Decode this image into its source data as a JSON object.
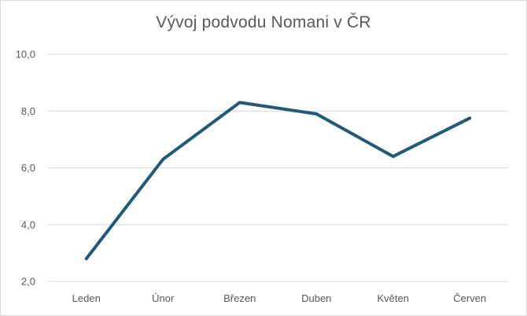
{
  "chart_data": {
    "type": "line",
    "title": "Vývoj podvodu Nomani v ČR",
    "xlabel": "",
    "ylabel": "",
    "categories": [
      "Leden",
      "Únor",
      "Březen",
      "Duben",
      "Květen",
      "Červen"
    ],
    "series": [
      {
        "values": [
          2.8,
          6.3,
          8.3,
          7.9,
          6.4,
          7.75
        ],
        "color": "#1f5a7a"
      }
    ],
    "ylim": [
      2.0,
      10.0
    ],
    "yticks": [
      "2,0",
      "4,0",
      "6,0",
      "8,0",
      "10,0"
    ],
    "ytick_values": [
      2,
      4,
      6,
      8,
      10
    ],
    "grid": true,
    "legend": "none",
    "gridline_color": "#d9d9d9"
  }
}
